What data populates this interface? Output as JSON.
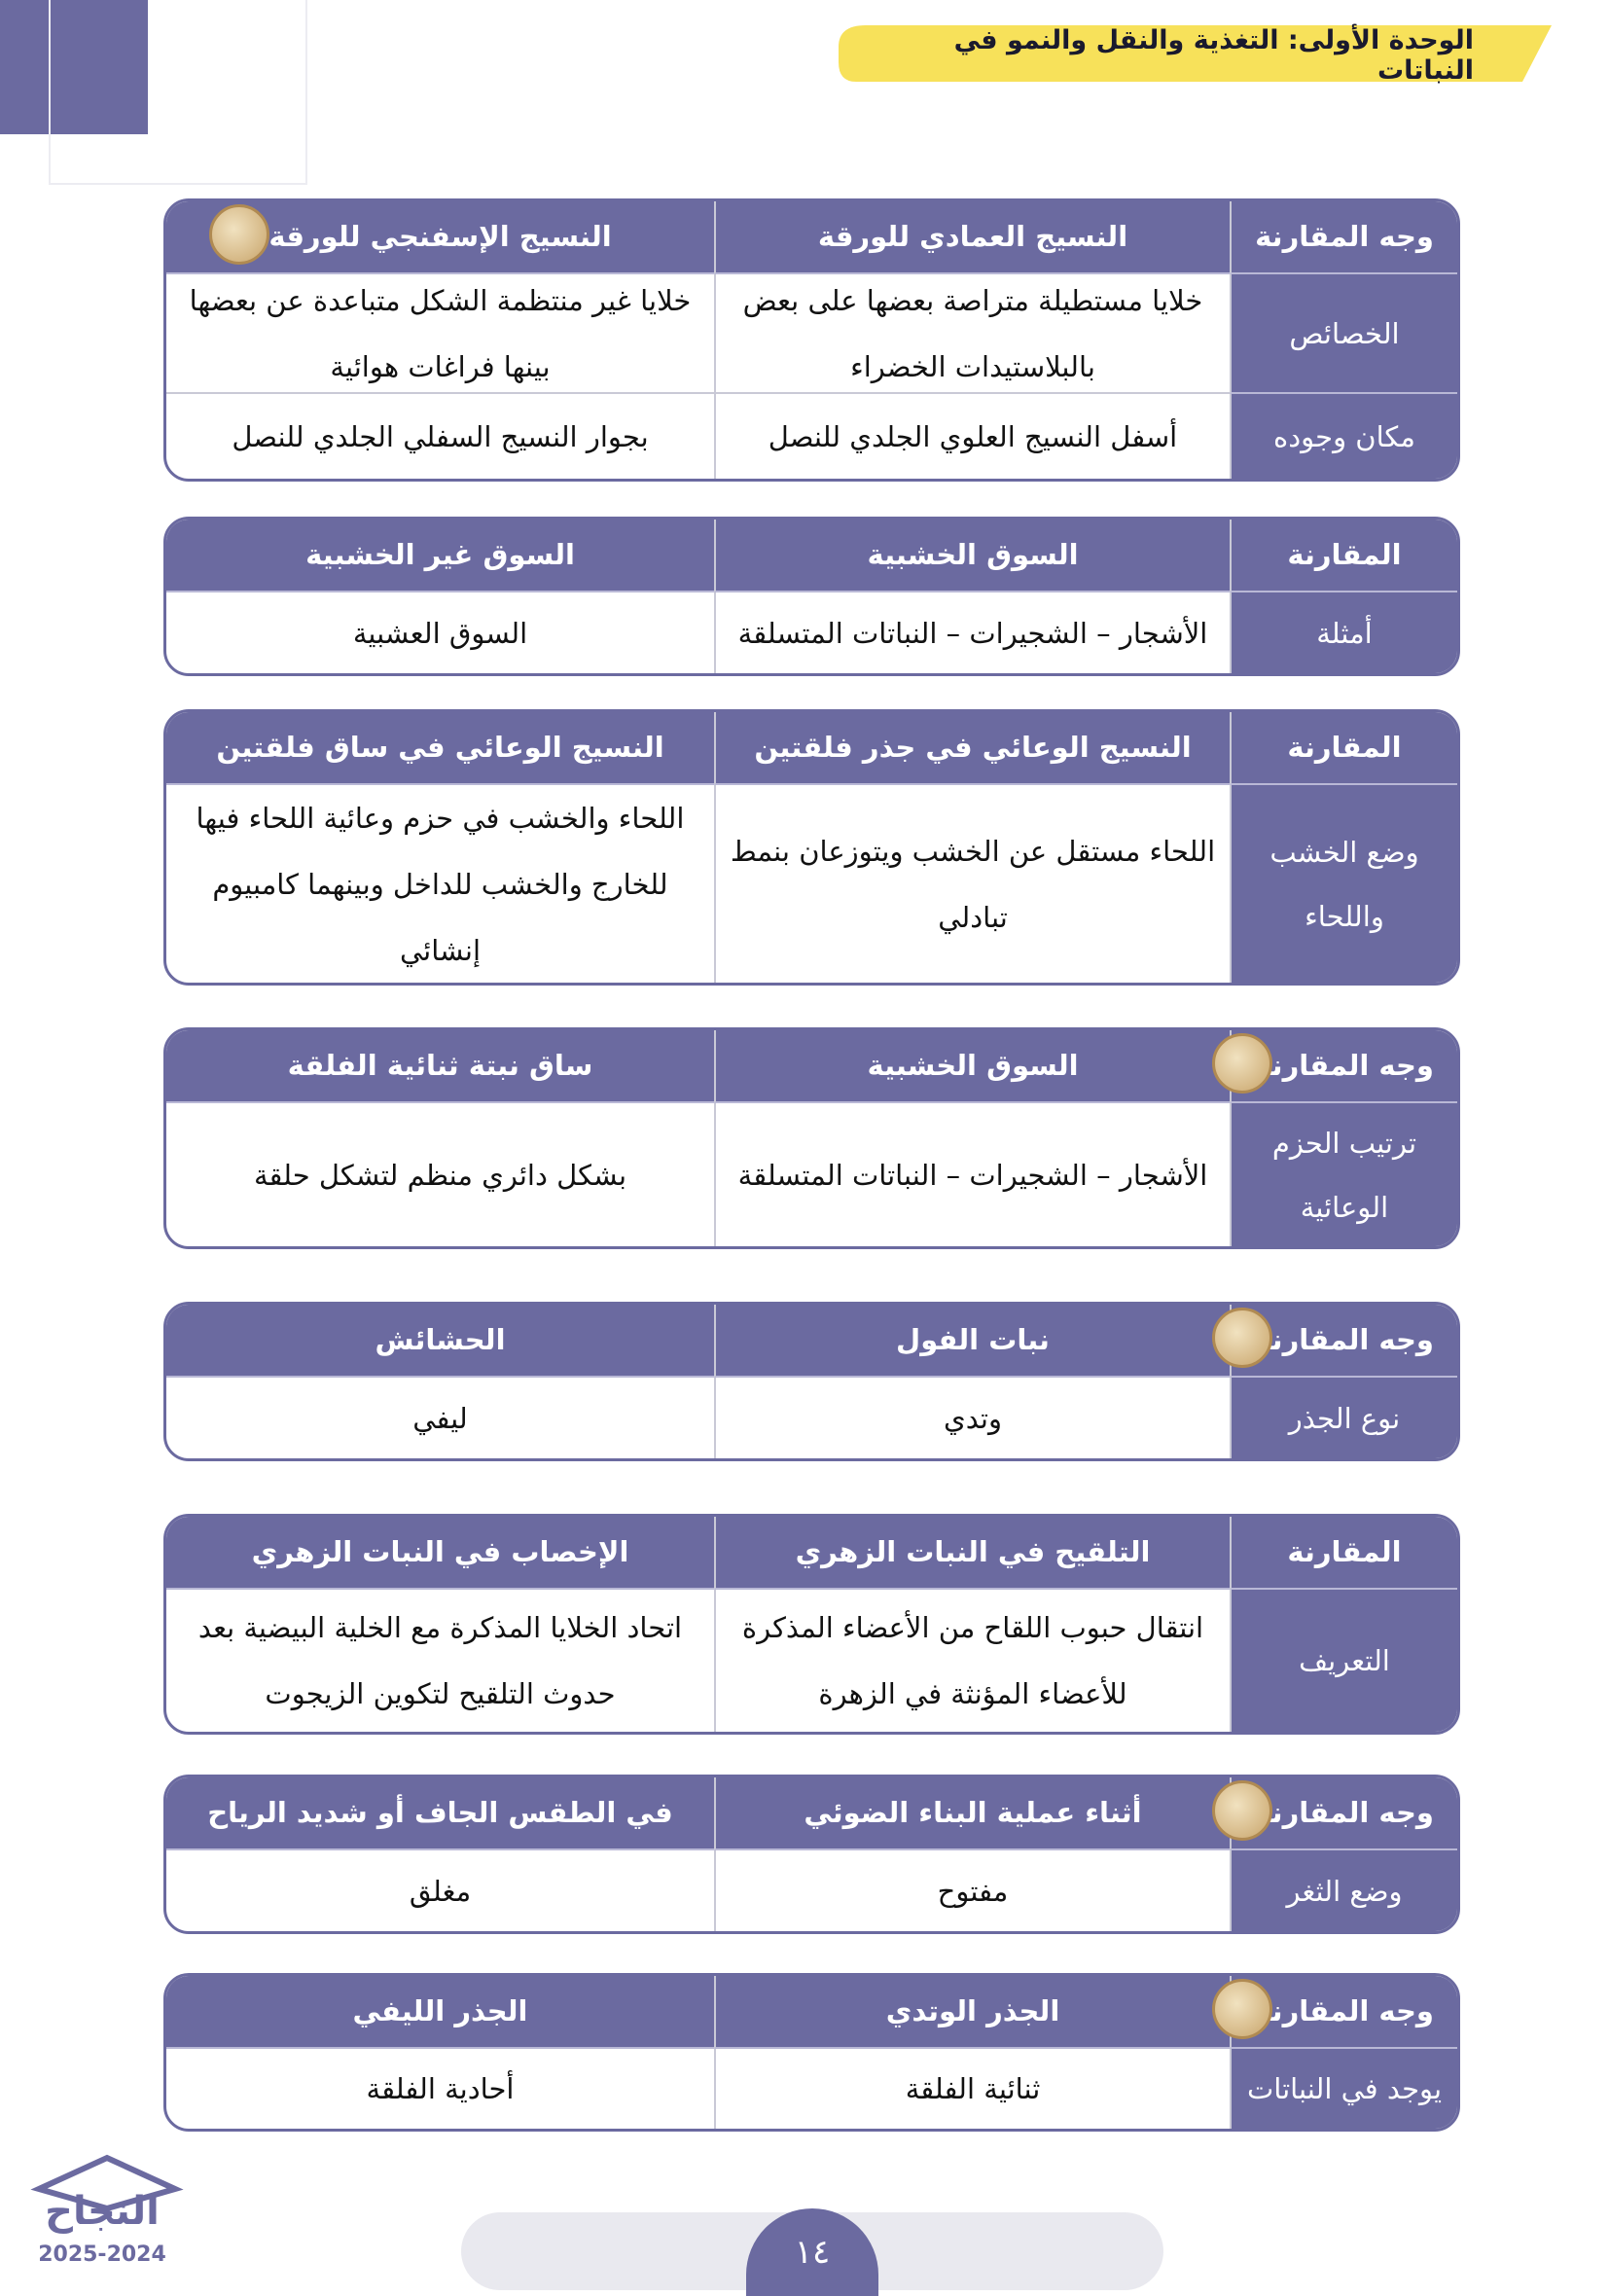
{
  "header": {
    "title": "الوحدة الأولى: التغذية والنقل والنمو في النباتات"
  },
  "tables": [
    {
      "header": [
        "وجه المقارنة",
        "النسيج العمادي للورقة",
        "النسيج الإسفنجي للورقة"
      ],
      "rows": [
        [
          "الخصائص",
          "خلايا مستطيلة متراصة بعضها على بعض بالبلاستيدات الخضراء",
          "خلايا غير منتظمة الشكل متباعدة عن بعضها بينها فراغات هوائية"
        ],
        [
          "مكان وجوده",
          "أسفل النسيج العلوي الجلدي للنصل",
          "بجوار النسيج السفلي الجلدي للنصل"
        ]
      ]
    },
    {
      "header": [
        "المقارنة",
        "السوق الخشبية",
        "السوق غير الخشبية"
      ],
      "rows": [
        [
          "أمثلة",
          "الأشجار – الشجيرات – النباتات المتسلقة",
          "السوق العشبية"
        ]
      ]
    },
    {
      "header": [
        "المقارنة",
        "النسيج الوعائي في جذر فلقتين",
        "النسيج الوعائي في ساق فلقتين"
      ],
      "rows": [
        [
          "وضع الخشب واللحاء",
          "اللحاء مستقل عن الخشب ويتوزعان بنمط تبادلي",
          "اللحاء والخشب في حزم وعائية اللحاء فيها للخارج والخشب للداخل وبينهما كامبيوم إنشائي"
        ]
      ]
    },
    {
      "header": [
        "وجه المقارنة",
        "السوق الخشبية",
        "ساق نبتة ثنائية الفلقة"
      ],
      "rows": [
        [
          "ترتيب الحزم الوعائية",
          "الأشجار – الشجيرات – النباتات المتسلقة",
          "بشكل دائري منظم لتشكل حلقة"
        ]
      ]
    },
    {
      "header": [
        "وجه المقارنة",
        "نبات الفول",
        "الحشائش"
      ],
      "rows": [
        [
          "نوع الجذر",
          "وتدي",
          "ليفي"
        ]
      ]
    },
    {
      "header": [
        "المقارنة",
        "التلقيح في النبات الزهري",
        "الإخصاب في النبات الزهري"
      ],
      "rows": [
        [
          "التعريف",
          "انتقال حبوب اللقاح من الأعضاء المذكرة للأعضاء المؤنثة في الزهرة",
          "اتحاد الخلايا المذكرة مع الخلية البيضية بعد حدوث التلقيح لتكوين الزيجوت"
        ]
      ]
    },
    {
      "header": [
        "وجه المقارنة",
        "أثناء عملية البناء الضوئي",
        "في الطقس الجاف أو شديد الرياح"
      ],
      "rows": [
        [
          "وضع الثغر",
          "مفتوح",
          "مغلق"
        ]
      ]
    },
    {
      "header": [
        "وجه المقارنة",
        "الجذر الوتدي",
        "الجذر الليفي"
      ],
      "rows": [
        [
          "يوجد في النباتات",
          "ثنائية الفلقة",
          "أحادية الفلقة"
        ]
      ]
    }
  ],
  "footer": {
    "page_number": "١٤",
    "logo": "النجاح",
    "years": "2025-2024"
  }
}
